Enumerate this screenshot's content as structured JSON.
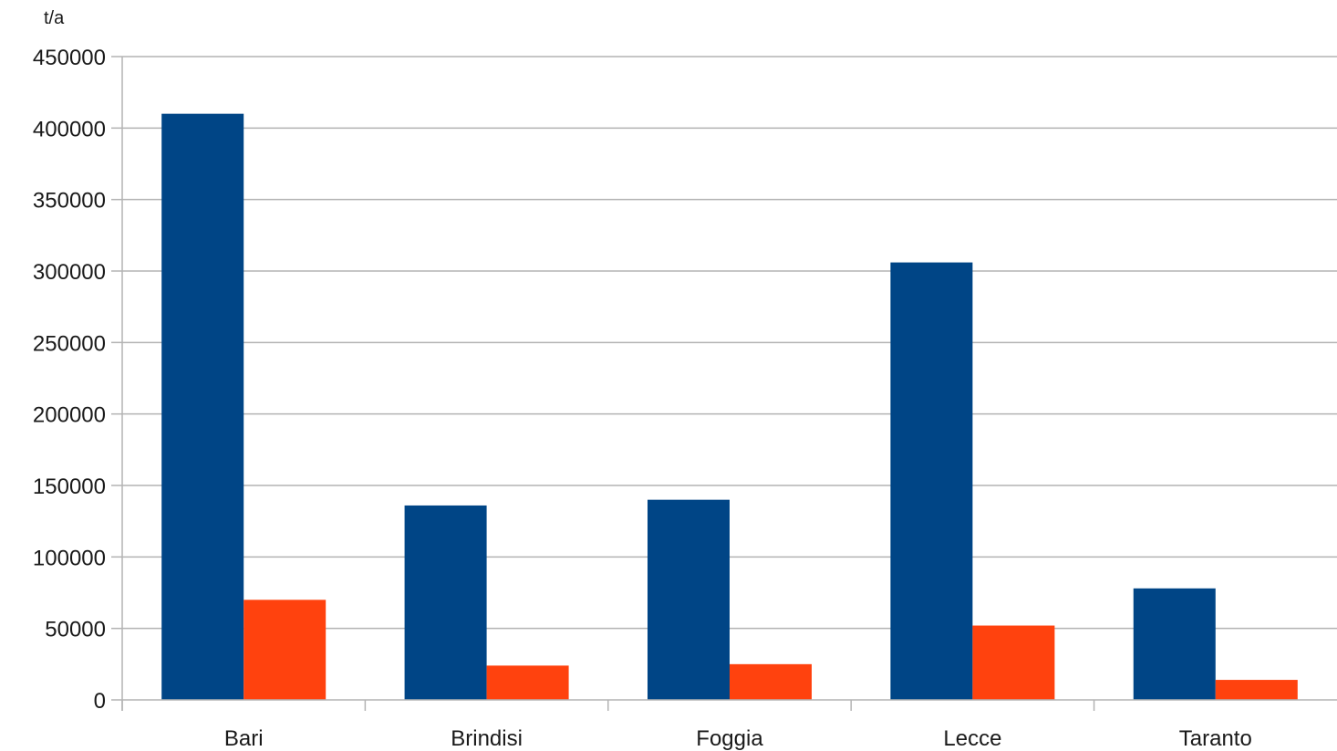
{
  "chart_data": {
    "type": "bar",
    "title": "",
    "xlabel": "",
    "ylabel": "t/a",
    "categories": [
      "Bari",
      "Brindisi",
      "Foggia",
      "Lecce",
      "Taranto"
    ],
    "series": [
      {
        "color": "#004586",
        "values": [
          410000,
          136000,
          140000,
          306000,
          78000
        ]
      },
      {
        "color": "#ff420e",
        "values": [
          70000,
          24000,
          25000,
          52000,
          14000
        ]
      }
    ],
    "ylim": [
      0,
      450000
    ],
    "yticks": [
      "0",
      "50000",
      "100000",
      "150000",
      "200000",
      "250000",
      "300000",
      "350000",
      "400000",
      "450000"
    ],
    "grid": true,
    "legend": "none"
  }
}
